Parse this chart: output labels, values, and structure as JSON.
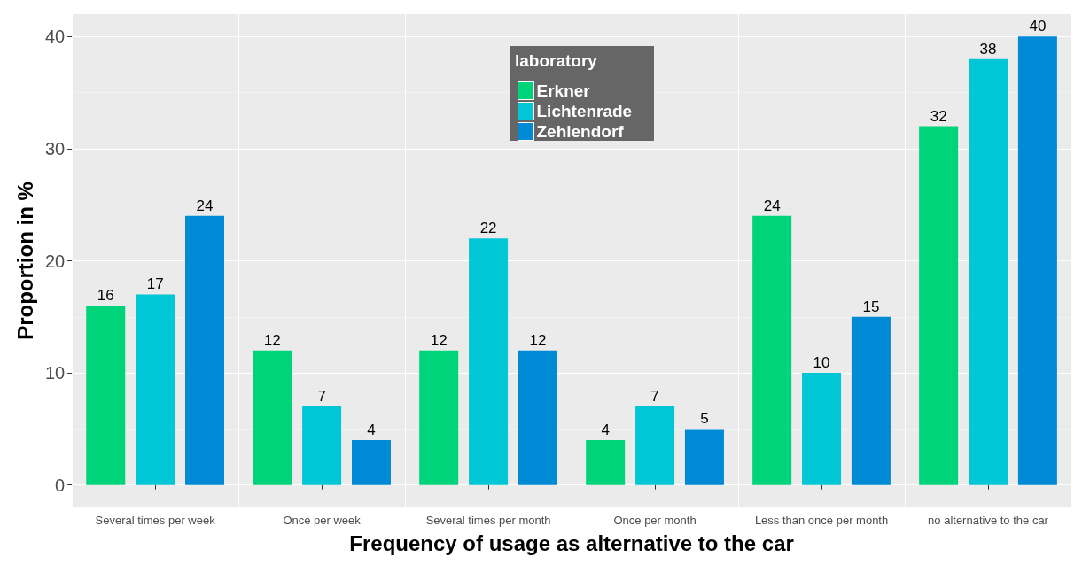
{
  "chart_data": {
    "type": "bar",
    "xlabel": "Frequency of usage as alternative to the car",
    "ylabel": "Proportion in %",
    "legend_title": "laboratory",
    "categories": [
      "Several times per week",
      "Once per week",
      "Several times per month",
      "Once per month",
      "Less than once per month",
      "no alternative to the car"
    ],
    "series": [
      {
        "name": "Erkner",
        "color": "#00d47a",
        "values": [
          16,
          12,
          12,
          4,
          24,
          32
        ]
      },
      {
        "name": "Lichtenrade",
        "color": "#00c6d6",
        "values": [
          17,
          7,
          22,
          7,
          10,
          38
        ]
      },
      {
        "name": "Zehlendorf",
        "color": "#0089d4",
        "values": [
          24,
          4,
          12,
          5,
          15,
          40
        ]
      }
    ],
    "ylim": [
      -2,
      42
    ],
    "yticks": [
      0,
      10,
      20,
      30,
      40
    ],
    "grid": true,
    "legend": "top",
    "data_labels": true
  }
}
